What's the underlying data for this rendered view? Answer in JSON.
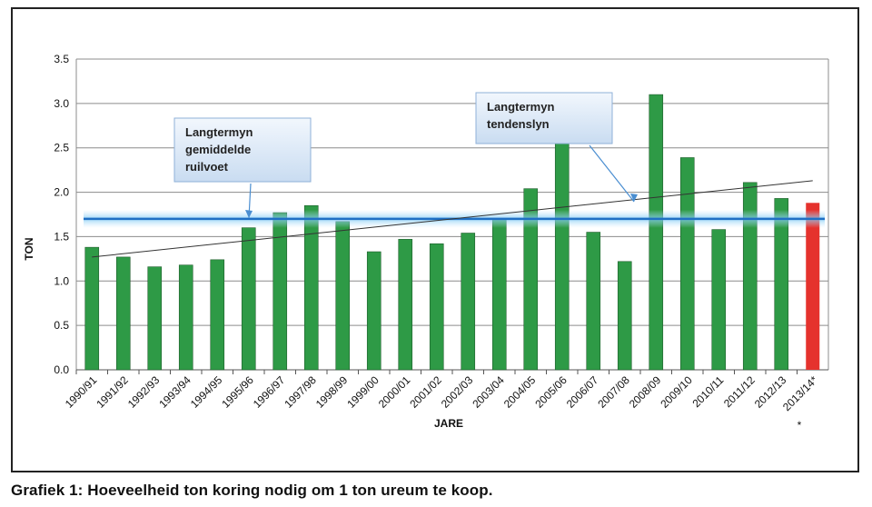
{
  "chart_data": {
    "type": "bar",
    "ylabel": "TON",
    "xlabel": "JARE",
    "ylim": [
      0,
      3.5
    ],
    "ytick_step": 0.5,
    "grid": true,
    "categories": [
      "1990/91",
      "1991/92",
      "1992/93",
      "1993/94",
      "1994/95",
      "1995/96",
      "1996/97",
      "1997/98",
      "1998/99",
      "1999/00",
      "2000/01",
      "2001/02",
      "2002/03",
      "2003/04",
      "2004/05",
      "2005/06",
      "2006/07",
      "2007/08",
      "2008/09",
      "2009/10",
      "2010/11",
      "2011/12",
      "2012/13",
      "2013/14*"
    ],
    "values": [
      1.38,
      1.27,
      1.16,
      1.18,
      1.24,
      1.6,
      1.77,
      1.85,
      1.67,
      1.33,
      1.47,
      1.42,
      1.54,
      1.7,
      2.04,
      2.55,
      1.55,
      1.22,
      3.1,
      2.39,
      1.58,
      2.11,
      1.93,
      1.88
    ],
    "bar_colors": {
      "default": "#2e9a46",
      "highlight": "#e5322d"
    },
    "highlight_index": 23,
    "average_line": {
      "value": 1.7,
      "color": "#1f6fc4"
    },
    "trend_line": {
      "start_value": 1.27,
      "end_value": 2.13
    },
    "annotations": [
      {
        "lines": [
          "Langtermyn",
          "gemiddelde",
          "ruilvoet"
        ]
      },
      {
        "lines": [
          "Langtermyn",
          "tendenslyn"
        ]
      }
    ],
    "footnote_mark": "*"
  },
  "caption": "Grafiek 1: Hoeveelheid ton koring nodig om 1 ton ureum te koop."
}
